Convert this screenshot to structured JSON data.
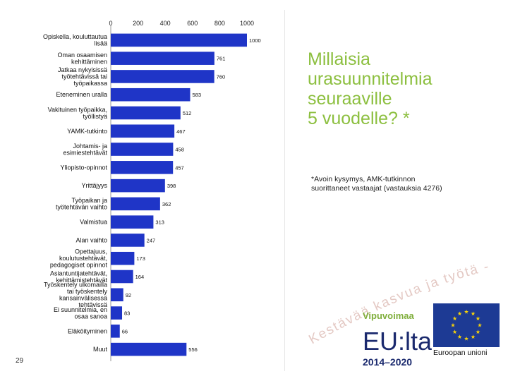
{
  "slide": {
    "title": "Millaisia\nurasuunnitelmia\nseuraaville\n5 vuodelle? *",
    "footnote": "*Avoin kysymys, AMK-tutkinnon suorittaneet vastaajat (vastauksia 4276)",
    "page_number": "29",
    "colors": {
      "title": "#8cbf3f",
      "bar": "#1f35c7",
      "watermark_text": "#e4c9c4"
    },
    "watermark": {
      "lines": [
        "Kestävää kasvua ja työtä -ohjelma"
      ]
    },
    "logos": {
      "vipuvoima_title": "Vipuvoimaa",
      "vipuvoima_main": "EU:lta",
      "vipuvoima_years": "2014–2020",
      "eu_caption": "Euroopan unioni"
    }
  },
  "chart_data": {
    "type": "bar",
    "orientation": "horizontal",
    "categories": [
      "Opiskella, kouluttautua lisää",
      "Oman osaamisen kehittäminen",
      "Jatkaa nykyisissä työtehtävissä tai työpaikassa",
      "Eteneminen uralla",
      "Vakituinen työpaikka, työllistyä",
      "YAMK-tutkinto",
      "Johtamis- ja esimiestehtävät",
      "Yliopisto-opinnot",
      "Yrittäjyys",
      "Työpaikan ja työtehtävän vaihto",
      "Valmistua",
      "Alan vaihto",
      "Opettajuus, koulutustehtävät, pedagogiset opinnot",
      "Asiantuntijatehtävät, kehittämistehtävät",
      "Työskentely ulkomailla tai työskentely kansainvälisessä tehtävissä",
      "Ei suunnitelmia, en osaa sanoa",
      "Eläköityminen",
      "Muut"
    ],
    "values": [
      1000,
      761,
      760,
      583,
      512,
      467,
      458,
      457,
      398,
      362,
      313,
      247,
      173,
      164,
      92,
      83,
      66,
      556
    ],
    "xlim": [
      0,
      1000
    ],
    "xticks": [
      0,
      200,
      400,
      600,
      800,
      1000
    ],
    "grid": false,
    "legend": "none"
  }
}
